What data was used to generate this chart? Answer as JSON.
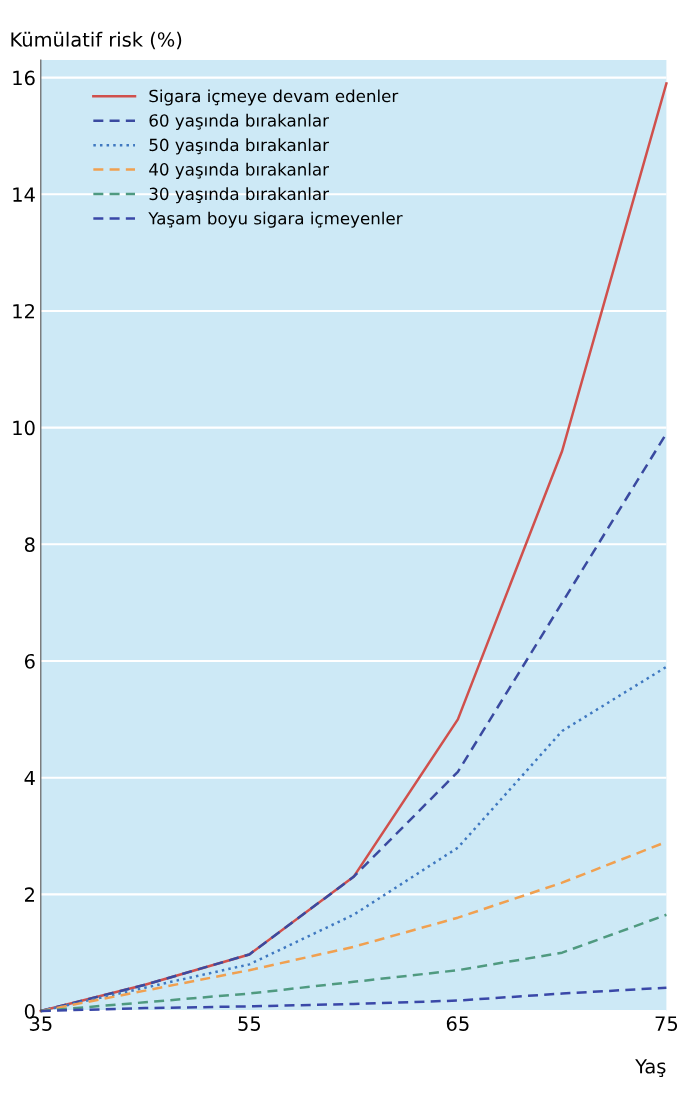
{
  "chart_data": {
    "type": "line",
    "ylabel": "Kümülatif risk (%)",
    "xlabel": "Yaş",
    "categories": [
      "35",
      null,
      "55",
      null,
      "65",
      null,
      "75"
    ],
    "series": [
      {
        "name": "Sigara içmeye devam edenler",
        "color": "#d0504c",
        "line_style": "solid",
        "values": [
          0,
          0.45,
          0.97,
          2.3,
          5.0,
          9.6,
          15.9
        ]
      },
      {
        "name": "60 yaşında bırakanlar",
        "color": "#3a4aa0",
        "line_style": "dashed",
        "values": [
          0,
          0.45,
          0.97,
          2.3,
          4.1,
          7.0,
          9.9
        ]
      },
      {
        "name": "50 yaşında bırakanlar",
        "color": "#3f78c0",
        "line_style": "dotted",
        "values": [
          0,
          0.4,
          0.8,
          1.65,
          2.8,
          4.8,
          5.9
        ]
      },
      {
        "name": "40 yaşında bırakanlar",
        "color": "#f0a050",
        "line_style": "dashed",
        "values": [
          0,
          0.35,
          0.7,
          1.1,
          1.6,
          2.2,
          2.9
        ]
      },
      {
        "name": "30 yaşında bırakanlar",
        "color": "#4f9a80",
        "line_style": "dashed",
        "values": [
          0,
          0.15,
          0.3,
          0.5,
          0.7,
          1.0,
          1.65
        ]
      },
      {
        "name": "Yaşam boyu sigara içmeyenler",
        "color": "#3a48a8",
        "line_style": "dashed",
        "values": [
          0,
          0.05,
          0.08,
          0.12,
          0.18,
          0.3,
          0.4
        ]
      }
    ],
    "ylim": [
      0,
      16.3
    ],
    "yticks": [
      0,
      2,
      4,
      6,
      8,
      10,
      12,
      14,
      16
    ],
    "grid": "y",
    "legend": "top left"
  }
}
